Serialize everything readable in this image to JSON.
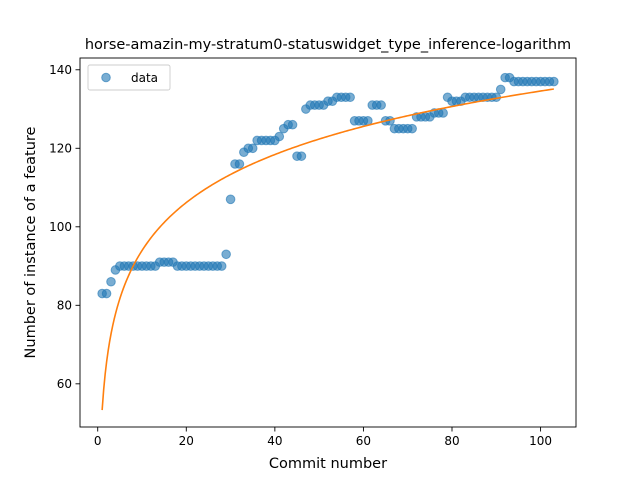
{
  "chart_data": {
    "type": "scatter",
    "title": "horse-amazin-my-stratum0-statuswidget_type_inference-logarithm",
    "xlabel": "Commit number",
    "ylabel": "Number of instance of a feature",
    "xlim": [
      -4,
      108
    ],
    "ylim": [
      49,
      143
    ],
    "xticks": [
      0,
      20,
      40,
      60,
      80,
      100
    ],
    "yticks": [
      60,
      80,
      100,
      120,
      140
    ],
    "xtick_labels": [
      "0",
      "20",
      "40",
      "60",
      "80",
      "100"
    ],
    "ytick_labels": [
      "60",
      "80",
      "100",
      "120",
      "140"
    ],
    "grid": false,
    "legend": {
      "position": "top-left",
      "entries": [
        {
          "label": "data",
          "color": "#1f77b4",
          "marker": "circle"
        }
      ]
    },
    "series": [
      {
        "name": "data",
        "kind": "scatter",
        "color": "#1f77b4",
        "x": [
          1,
          2,
          3,
          4,
          5,
          6,
          7,
          8,
          9,
          10,
          11,
          12,
          13,
          14,
          15,
          16,
          17,
          18,
          19,
          20,
          21,
          22,
          23,
          24,
          25,
          26,
          27,
          28,
          29,
          30,
          31,
          32,
          33,
          34,
          35,
          36,
          37,
          38,
          39,
          40,
          41,
          42,
          43,
          44,
          45,
          46,
          47,
          48,
          49,
          50,
          51,
          52,
          53,
          54,
          55,
          56,
          57,
          58,
          59,
          60,
          61,
          62,
          63,
          64,
          65,
          66,
          67,
          68,
          69,
          70,
          71,
          72,
          73,
          74,
          75,
          76,
          77,
          78,
          79,
          80,
          81,
          82,
          83,
          84,
          85,
          86,
          87,
          88,
          89,
          90,
          91,
          92,
          93,
          94,
          95,
          96,
          97,
          98,
          99,
          100,
          101,
          102,
          103
        ],
        "y": [
          83,
          83,
          86,
          89,
          90,
          90,
          90,
          90,
          90,
          90,
          90,
          90,
          90,
          91,
          91,
          91,
          91,
          90,
          90,
          90,
          90,
          90,
          90,
          90,
          90,
          90,
          90,
          90,
          93,
          107,
          116,
          116,
          119,
          120,
          120,
          122,
          122,
          122,
          122,
          122,
          123,
          125,
          126,
          126,
          118,
          118,
          130,
          131,
          131,
          131,
          131,
          132,
          132,
          133,
          133,
          133,
          133,
          127,
          127,
          127,
          127,
          131,
          131,
          131,
          127,
          127,
          125,
          125,
          125,
          125,
          125,
          128,
          128,
          128,
          128,
          129,
          129,
          129,
          133,
          132,
          132,
          132,
          133,
          133,
          133,
          133,
          133,
          133,
          133,
          133,
          135,
          138,
          138,
          137,
          137,
          137,
          137,
          137,
          137,
          137,
          137,
          137,
          137
        ]
      },
      {
        "name": "",
        "kind": "line",
        "color": "#ff7f0e",
        "model": "logarithmic",
        "a": 53.3,
        "b": 17.65
      }
    ]
  }
}
